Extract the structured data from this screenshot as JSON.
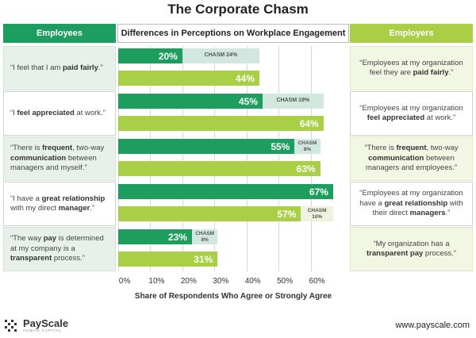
{
  "title": "The Corporate Chasm",
  "headers": {
    "employees": "Employees",
    "middle": "Differences in Perceptions on Workplace Engagement",
    "employers": "Employers"
  },
  "rows": [
    {
      "left": [
        {
          "t": "“I feel that I am ",
          "b": false
        },
        {
          "t": "paid fairly",
          "b": true
        },
        {
          "t": ".”",
          "b": false
        }
      ],
      "right": [
        {
          "t": "“Employees at my organization feel they are ",
          "b": false
        },
        {
          "t": "paid fairly",
          "b": true
        },
        {
          "t": ".”",
          "b": false
        }
      ],
      "employee_label": "20%",
      "employer_label": "44%",
      "chasm_word": "CHASM",
      "chasm_value": "24%"
    },
    {
      "left": [
        {
          "t": "“I ",
          "b": false
        },
        {
          "t": "feel appreciated",
          "b": true
        },
        {
          "t": " at work.”",
          "b": false
        }
      ],
      "right": [
        {
          "t": "“Employees at my organization ",
          "b": false
        },
        {
          "t": "feel appreciated",
          "b": true
        },
        {
          "t": " at work.”",
          "b": false
        }
      ],
      "employee_label": "45%",
      "employer_label": "64%",
      "chasm_word": "CHASM",
      "chasm_value": "19%"
    },
    {
      "left": [
        {
          "t": "“There is ",
          "b": false
        },
        {
          "t": "frequent",
          "b": true
        },
        {
          "t": ", two-way ",
          "b": false
        },
        {
          "t": "communication",
          "b": true
        },
        {
          "t": " between managers and myself.”",
          "b": false
        }
      ],
      "right": [
        {
          "t": "“There is ",
          "b": false
        },
        {
          "t": "frequent",
          "b": true
        },
        {
          "t": ", two-way ",
          "b": false
        },
        {
          "t": "communication",
          "b": true
        },
        {
          "t": " between managers and employees.”",
          "b": false
        }
      ],
      "employee_label": "55%",
      "employer_label": "63%",
      "chasm_word": "CHASM",
      "chasm_value": "8%"
    },
    {
      "left": [
        {
          "t": "“I have a ",
          "b": false
        },
        {
          "t": "great relationship",
          "b": true
        },
        {
          "t": " with my direct ",
          "b": false
        },
        {
          "t": "manager",
          "b": true
        },
        {
          "t": ".”",
          "b": false
        }
      ],
      "right": [
        {
          "t": "“Employees at my organization have a ",
          "b": false
        },
        {
          "t": "great relationship",
          "b": true
        },
        {
          "t": " with their direct ",
          "b": false
        },
        {
          "t": "managers",
          "b": true
        },
        {
          "t": ".”",
          "b": false
        }
      ],
      "employee_label": "67%",
      "employer_label": "57%",
      "chasm_word": "CHASM",
      "chasm_value": "10%"
    },
    {
      "left": [
        {
          "t": "“The way ",
          "b": false
        },
        {
          "t": "pay",
          "b": true
        },
        {
          "t": " is determined at my company is a ",
          "b": false
        },
        {
          "t": "transparent",
          "b": true
        },
        {
          "t": " process.”",
          "b": false
        }
      ],
      "right": [
        {
          "t": "“My organization has a ",
          "b": false
        },
        {
          "t": "transparent pay",
          "b": true
        },
        {
          "t": " process.”",
          "b": false
        }
      ],
      "employee_label": "23%",
      "employer_label": "31%",
      "chasm_word": "CHASM",
      "chasm_value": "8%"
    }
  ],
  "chart_data": {
    "type": "bar",
    "title": "Differences in Perceptions on Workplace Engagement",
    "xlabel": "Share of Respondents Who Agree or Strongly Agree",
    "ylabel": "",
    "xlim": [
      0,
      70
    ],
    "ticks": [
      0,
      10,
      20,
      30,
      40,
      50,
      60
    ],
    "tick_labels": [
      "0%",
      "10%",
      "20%",
      "30%",
      "40%",
      "50%",
      "60%"
    ],
    "categories": [
      "I feel that I am paid fairly.",
      "I feel appreciated at work.",
      "There is frequent, two-way communication between managers and myself.",
      "I have a great relationship with my direct manager.",
      "The way pay is determined at my company is a transparent process."
    ],
    "series": [
      {
        "name": "Employees",
        "color": "#1e9e5e",
        "values": [
          20,
          45,
          55,
          67,
          23
        ]
      },
      {
        "name": "Employers",
        "color": "#a8cf45",
        "values": [
          44,
          64,
          63,
          57,
          31
        ]
      }
    ],
    "chasm": [
      24,
      19,
      8,
      10,
      8
    ]
  },
  "footer": {
    "brand": "PayScale",
    "tagline": "HUMAN CAPITAL",
    "url": "www.payscale.com"
  },
  "colors": {
    "employees": "#1e9e5e",
    "employers": "#a8cf45",
    "chasm": "#d2e7de"
  }
}
